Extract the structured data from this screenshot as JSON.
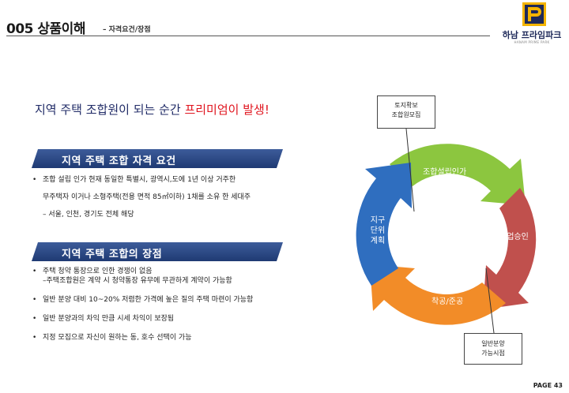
{
  "header": {
    "title": "005 상품이해",
    "subtitle": "– 자격요건/장점"
  },
  "logo": {
    "name": "하남 프라임파크",
    "tagline": "HANAM PRIME PARK"
  },
  "headline": {
    "lead": "지역 주택 조합원이 되는 순간 ",
    "accent": "프리미엄이 발생!"
  },
  "requirements": {
    "title": "지역 주택 조합 자격 요건",
    "items": [
      "조합 설립 인가 현재 동일한 특별시, 광역시,도에 1년 이상 거주한",
      "무주택자 이거나 소형주택(전용 면적 85㎡이하) 1채를  소유 한 세대주",
      "– 서울, 인천, 경기도 전체 해당"
    ]
  },
  "advantages": {
    "title": "지역 주택 조합의 장점",
    "items": [
      {
        "line1": "주택 청약 통장으로 인한 경쟁이 없음",
        "line2": "–주택조합원은 계약 시 청약통장 유무에 무관하게 계약이 가능함"
      },
      {
        "line1": "일반 분양 대비 10~20% 저렴한 가격에 높은 질의 주택 마련이 가능함",
        "line2": ""
      },
      {
        "line1": "일반 분양과의 차익 만큼 시세 차익이 보장됨",
        "line2": ""
      },
      {
        "line1": "지정 모집으로  자신이 원하는  동, 호수 선택이 가능",
        "line2": ""
      }
    ]
  },
  "cycle": {
    "callout_top": [
      "토지확보",
      "조합원모집"
    ],
    "callout_bottom": [
      "일반분양",
      "가능시점"
    ],
    "segments": {
      "green": "조합설립인가",
      "red": "사업승인",
      "orange": "착공/준공",
      "blue": "지구 단위 계획"
    },
    "colors": {
      "green": "#8cc63f",
      "red": "#c0504d",
      "orange": "#f28c28",
      "blue": "#2f6ebf"
    }
  },
  "page": "PAGE 43"
}
